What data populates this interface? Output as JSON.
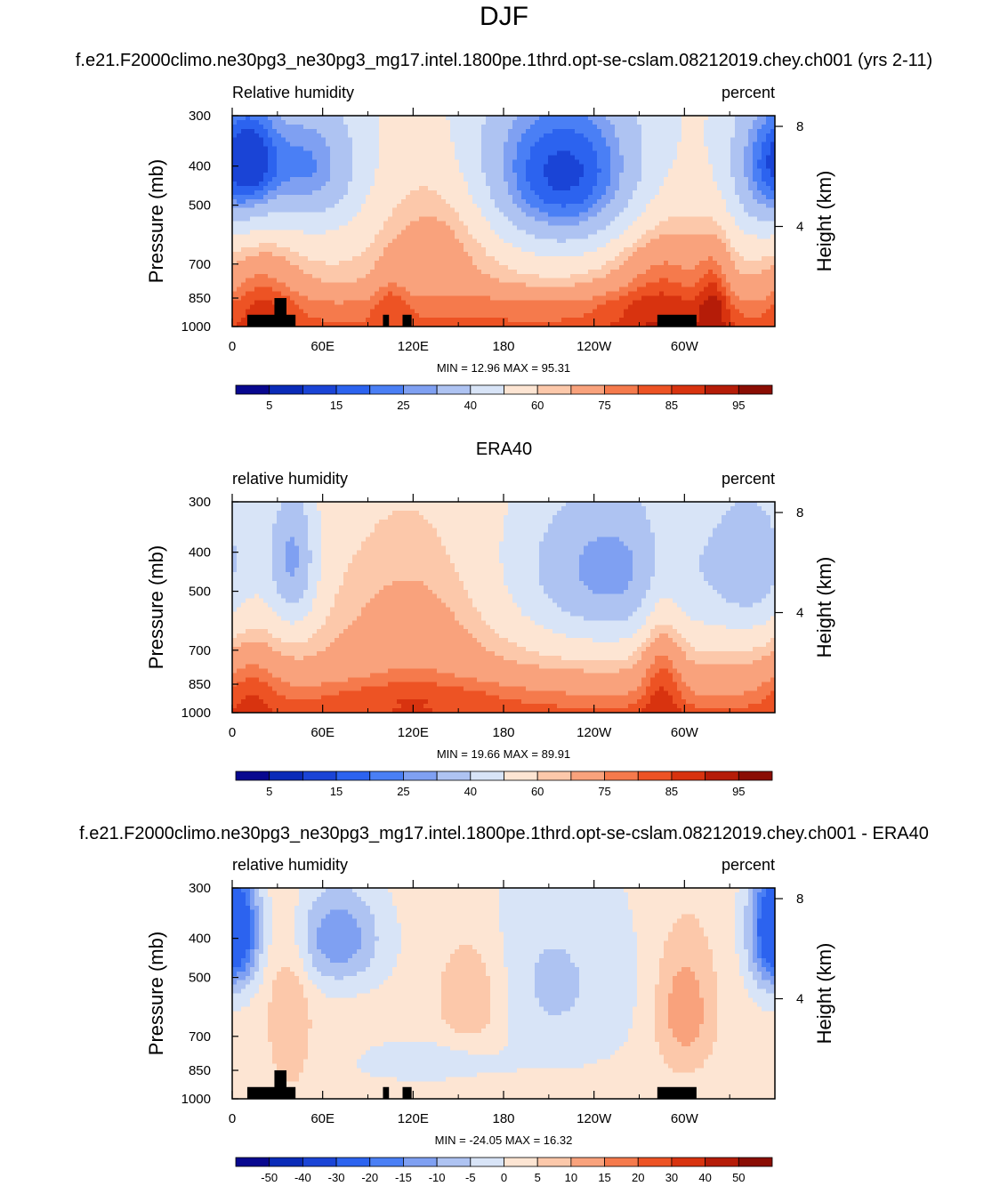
{
  "page": {
    "main_title": "DJF",
    "panel1_header": "f.e21.F2000climo.ne30pg3_ne30pg3_mg17.intel.1800pe.1thrd.opt-se-cslam.08212019.chey.ch001 (yrs 2-11)",
    "panel2_header": "ERA40",
    "panel3_header": "f.e21.F2000climo.ne30pg3_ne30pg3_mg17.intel.1800pe.1thrd.opt-se-cslam.08212019.chey.ch001 - ERA40"
  },
  "chart_data": [
    {
      "type": "heatmap",
      "id": "model",
      "left_label": "Relative humidity",
      "right_label": "percent",
      "ylabel": "Pressure (mb)",
      "y2label": "Height (km)",
      "x_ticks": [
        "0",
        "60E",
        "120E",
        "180",
        "120W",
        "60W"
      ],
      "x_tick_lon": [
        0,
        60,
        120,
        180,
        240,
        300
      ],
      "xlim": [
        0,
        360
      ],
      "y_ticks": [
        "300",
        "400",
        "500",
        "700",
        "850",
        "1000"
      ],
      "y_tick_p": [
        300,
        400,
        500,
        700,
        850,
        1000
      ],
      "ylim": [
        1000,
        300
      ],
      "y2_ticks": [
        "8",
        "4"
      ],
      "y2_tick_km": [
        8,
        4
      ],
      "stats": "MIN =  12.96  MAX =  95.31",
      "min": 12.96,
      "max": 95.31,
      "mask": true,
      "colorbar_levels": [
        5,
        10,
        15,
        20,
        25,
        30,
        40,
        50,
        60,
        65,
        75,
        80,
        85,
        90,
        95
      ],
      "colorbar_labels": [
        "5",
        "15",
        "25",
        "40",
        "60",
        "75",
        "85",
        "95"
      ]
    },
    {
      "type": "heatmap",
      "id": "obs",
      "left_label": "relative humidity",
      "right_label": "percent",
      "ylabel": "Pressure (mb)",
      "y2label": "Height (km)",
      "x_ticks": [
        "0",
        "60E",
        "120E",
        "180",
        "120W",
        "60W"
      ],
      "x_tick_lon": [
        0,
        60,
        120,
        180,
        240,
        300
      ],
      "xlim": [
        0,
        360
      ],
      "y_ticks": [
        "300",
        "400",
        "500",
        "700",
        "850",
        "1000"
      ],
      "y_tick_p": [
        300,
        400,
        500,
        700,
        850,
        1000
      ],
      "ylim": [
        1000,
        300
      ],
      "y2_ticks": [
        "8",
        "4"
      ],
      "y2_tick_km": [
        8,
        4
      ],
      "stats": "MIN =  19.66  MAX =  89.91",
      "min": 19.66,
      "max": 89.91,
      "mask": false,
      "colorbar_levels": [
        5,
        10,
        15,
        20,
        25,
        30,
        40,
        50,
        60,
        65,
        75,
        80,
        85,
        90,
        95
      ],
      "colorbar_labels": [
        "5",
        "15",
        "25",
        "40",
        "60",
        "75",
        "85",
        "95"
      ]
    },
    {
      "type": "heatmap",
      "id": "diff",
      "left_label": "relative humidity",
      "right_label": "percent",
      "ylabel": "Pressure (mb)",
      "y2label": "Height (km)",
      "x_ticks": [
        "0",
        "60E",
        "120E",
        "180",
        "120W",
        "60W"
      ],
      "x_tick_lon": [
        0,
        60,
        120,
        180,
        240,
        300
      ],
      "xlim": [
        0,
        360
      ],
      "y_ticks": [
        "300",
        "400",
        "500",
        "700",
        "850",
        "1000"
      ],
      "y_tick_p": [
        300,
        400,
        500,
        700,
        850,
        1000
      ],
      "ylim": [
        1000,
        300
      ],
      "y2_ticks": [
        "8",
        "4"
      ],
      "y2_tick_km": [
        8,
        4
      ],
      "stats": "MIN = -24.05  MAX =  16.32",
      "min": -24.05,
      "max": 16.32,
      "mask": true,
      "colorbar_levels": [
        -50,
        -40,
        -30,
        -20,
        -15,
        -10,
        -5,
        0,
        5,
        10,
        15,
        20,
        30,
        40,
        50
      ],
      "colorbar_labels": [
        "-50",
        "-40",
        "-30",
        "-20",
        "-15",
        "-10",
        "-5",
        "0",
        "5",
        "10",
        "15",
        "20",
        "30",
        "40",
        "50"
      ]
    }
  ],
  "palette": [
    "#08088f",
    "#0a2bb8",
    "#1a44d6",
    "#2c63ef",
    "#4a7ff5",
    "#7fa0f2",
    "#aec3f2",
    "#d8e4f7",
    "#fde5d3",
    "#fcc8aa",
    "#f9a27c",
    "#f57a4c",
    "#ed5324",
    "#d8330f",
    "#b51c08",
    "#8a0d04"
  ],
  "mask_color": "#000000"
}
